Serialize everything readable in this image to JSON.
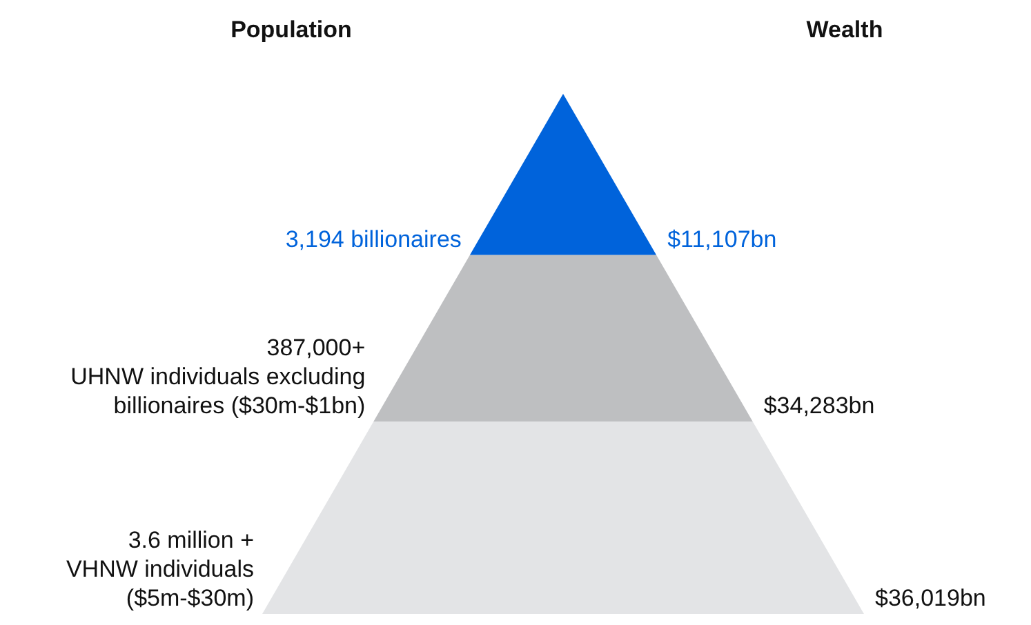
{
  "chart_data": {
    "type": "other",
    "annotations": [
      "Population",
      "Wealth"
    ],
    "categories": [
      "3,194 billionaires",
      "387,000+\nUHNW individuals excluding\nbillionaires ($30m-$1bn)",
      "3.6 million +\nVHNW individuals\n($5m-$30m)"
    ],
    "values": [
      11107,
      34283,
      36019
    ],
    "value_labels": [
      "$11,107bn",
      "$34,283bn",
      "$36,019bn"
    ],
    "colors": [
      "#0063db",
      "#bebfc1",
      "#e3e4e6"
    ]
  }
}
